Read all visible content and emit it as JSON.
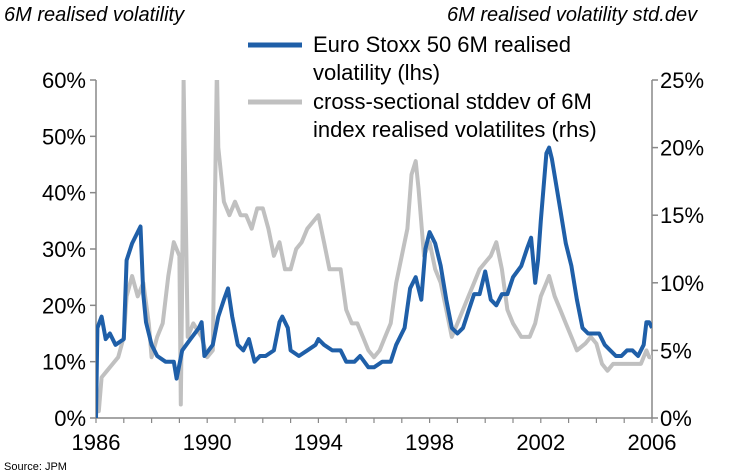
{
  "chart_data": {
    "type": "line",
    "left_axis_title": "6M realised volatility",
    "right_axis_title": "6M realised volatility std.dev",
    "x_ticks": [
      "1986",
      "1990",
      "1994",
      "1998",
      "2002",
      "2006"
    ],
    "y_left_ticks": [
      "0%",
      "10%",
      "20%",
      "30%",
      "40%",
      "50%",
      "60%"
    ],
    "y_right_ticks": [
      "0%",
      "5%",
      "10%",
      "15%",
      "20%",
      "25%"
    ],
    "xlim": [
      1986,
      2006
    ],
    "ylim_left": [
      0,
      60
    ],
    "ylim_right": [
      0,
      25
    ],
    "legend_placement": "top-right",
    "grid": false,
    "series": [
      {
        "name": "Euro Stoxx 50 6M realised volatility (lhs)",
        "axis": "left",
        "color": "#1f5fa8",
        "points": [
          [
            1986.0,
            0
          ],
          [
            1986.05,
            16
          ],
          [
            1986.2,
            18
          ],
          [
            1986.35,
            14
          ],
          [
            1986.5,
            15
          ],
          [
            1986.7,
            13
          ],
          [
            1987.0,
            14
          ],
          [
            1987.1,
            28
          ],
          [
            1987.3,
            31
          ],
          [
            1987.5,
            33
          ],
          [
            1987.6,
            34
          ],
          [
            1987.7,
            22
          ],
          [
            1987.8,
            17
          ],
          [
            1988.0,
            13
          ],
          [
            1988.2,
            11
          ],
          [
            1988.5,
            10
          ],
          [
            1988.8,
            10
          ],
          [
            1988.9,
            7
          ],
          [
            1989.1,
            12
          ],
          [
            1989.4,
            14
          ],
          [
            1989.7,
            16
          ],
          [
            1989.8,
            17
          ],
          [
            1989.9,
            11
          ],
          [
            1990.2,
            13
          ],
          [
            1990.4,
            18
          ],
          [
            1990.6,
            21
          ],
          [
            1990.75,
            23
          ],
          [
            1990.9,
            18
          ],
          [
            1991.1,
            13
          ],
          [
            1991.3,
            12
          ],
          [
            1991.5,
            14
          ],
          [
            1991.7,
            10
          ],
          [
            1991.9,
            11
          ],
          [
            1992.1,
            11
          ],
          [
            1992.4,
            12
          ],
          [
            1992.6,
            17
          ],
          [
            1992.7,
            18
          ],
          [
            1992.9,
            16
          ],
          [
            1993.0,
            12
          ],
          [
            1993.3,
            11
          ],
          [
            1993.6,
            12
          ],
          [
            1993.9,
            13
          ],
          [
            1994.0,
            14
          ],
          [
            1994.2,
            13
          ],
          [
            1994.5,
            12
          ],
          [
            1994.8,
            12
          ],
          [
            1995.0,
            10
          ],
          [
            1995.3,
            10
          ],
          [
            1995.5,
            11
          ],
          [
            1995.8,
            9
          ],
          [
            1996.0,
            9
          ],
          [
            1996.3,
            10
          ],
          [
            1996.6,
            10
          ],
          [
            1996.8,
            13
          ],
          [
            1997.0,
            15
          ],
          [
            1997.1,
            16
          ],
          [
            1997.3,
            23
          ],
          [
            1997.5,
            25
          ],
          [
            1997.7,
            21
          ],
          [
            1997.85,
            30
          ],
          [
            1998.0,
            33
          ],
          [
            1998.2,
            31
          ],
          [
            1998.4,
            27
          ],
          [
            1998.6,
            21
          ],
          [
            1998.8,
            16
          ],
          [
            1999.0,
            15
          ],
          [
            1999.2,
            16
          ],
          [
            1999.4,
            19
          ],
          [
            1999.6,
            22
          ],
          [
            1999.8,
            22
          ],
          [
            2000.0,
            26
          ],
          [
            2000.2,
            21
          ],
          [
            2000.4,
            20
          ],
          [
            2000.6,
            22
          ],
          [
            2000.8,
            22
          ],
          [
            2001.0,
            25
          ],
          [
            2001.3,
            27
          ],
          [
            2001.5,
            30
          ],
          [
            2001.65,
            32
          ],
          [
            2001.8,
            24
          ],
          [
            2001.9,
            28
          ],
          [
            2002.0,
            35
          ],
          [
            2002.1,
            41
          ],
          [
            2002.2,
            47
          ],
          [
            2002.3,
            48
          ],
          [
            2002.4,
            46
          ],
          [
            2002.5,
            43
          ],
          [
            2002.7,
            37
          ],
          [
            2002.9,
            31
          ],
          [
            2003.1,
            27
          ],
          [
            2003.3,
            21
          ],
          [
            2003.5,
            16
          ],
          [
            2003.7,
            15
          ],
          [
            2003.9,
            15
          ],
          [
            2004.1,
            15
          ],
          [
            2004.3,
            13
          ],
          [
            2004.5,
            12
          ],
          [
            2004.7,
            11
          ],
          [
            2004.9,
            11
          ],
          [
            2005.1,
            12
          ],
          [
            2005.3,
            12
          ],
          [
            2005.5,
            11
          ],
          [
            2005.7,
            13
          ],
          [
            2005.8,
            17
          ],
          [
            2005.9,
            17
          ],
          [
            2006.0,
            16
          ]
        ]
      },
      {
        "name": "cross-sectional stddev of 6M index realised volatilites (rhs)",
        "axis": "right",
        "color": "#c0c0c0",
        "points": [
          [
            1986.0,
            1
          ],
          [
            1986.1,
            0.5
          ],
          [
            1986.2,
            3
          ],
          [
            1986.4,
            3.5
          ],
          [
            1986.6,
            4
          ],
          [
            1986.8,
            4.5
          ],
          [
            1987.0,
            6
          ],
          [
            1987.1,
            9
          ],
          [
            1987.3,
            10.5
          ],
          [
            1987.5,
            9
          ],
          [
            1987.7,
            10
          ],
          [
            1987.9,
            7
          ],
          [
            1988.0,
            4.5
          ],
          [
            1988.2,
            6
          ],
          [
            1988.4,
            7
          ],
          [
            1988.6,
            10.5
          ],
          [
            1988.8,
            13
          ],
          [
            1989.0,
            12
          ],
          [
            1989.05,
            1
          ],
          [
            1989.1,
            10
          ],
          [
            1989.15,
            25
          ],
          [
            1989.3,
            6
          ],
          [
            1989.5,
            7
          ],
          [
            1989.8,
            6
          ],
          [
            1990.0,
            4.5
          ],
          [
            1990.2,
            5
          ],
          [
            1990.35,
            26
          ],
          [
            1990.4,
            20
          ],
          [
            1990.6,
            16
          ],
          [
            1990.8,
            15
          ],
          [
            1991.0,
            16
          ],
          [
            1991.2,
            15
          ],
          [
            1991.4,
            15
          ],
          [
            1991.6,
            14
          ],
          [
            1991.8,
            15.5
          ],
          [
            1992.0,
            15.5
          ],
          [
            1992.2,
            14
          ],
          [
            1992.4,
            12
          ],
          [
            1992.6,
            13
          ],
          [
            1992.8,
            11
          ],
          [
            1993.0,
            11
          ],
          [
            1993.2,
            12.5
          ],
          [
            1993.4,
            13
          ],
          [
            1993.6,
            14
          ],
          [
            1993.8,
            14.5
          ],
          [
            1994.0,
            15
          ],
          [
            1994.2,
            13
          ],
          [
            1994.4,
            11
          ],
          [
            1994.6,
            11
          ],
          [
            1994.8,
            11
          ],
          [
            1995.0,
            8
          ],
          [
            1995.2,
            7
          ],
          [
            1995.4,
            7
          ],
          [
            1995.6,
            6
          ],
          [
            1995.8,
            5
          ],
          [
            1996.0,
            4.5
          ],
          [
            1996.2,
            5
          ],
          [
            1996.4,
            6
          ],
          [
            1996.6,
            7
          ],
          [
            1996.8,
            10
          ],
          [
            1997.0,
            12
          ],
          [
            1997.2,
            14
          ],
          [
            1997.35,
            18
          ],
          [
            1997.5,
            19
          ],
          [
            1997.6,
            17
          ],
          [
            1997.8,
            12
          ],
          [
            1998.0,
            13
          ],
          [
            1998.2,
            11
          ],
          [
            1998.4,
            10
          ],
          [
            1998.6,
            8
          ],
          [
            1998.8,
            6
          ],
          [
            1999.0,
            7
          ],
          [
            1999.2,
            8
          ],
          [
            1999.4,
            9
          ],
          [
            1999.6,
            10
          ],
          [
            1999.8,
            11
          ],
          [
            2000.0,
            11.5
          ],
          [
            2000.2,
            12
          ],
          [
            2000.4,
            13
          ],
          [
            2000.6,
            11
          ],
          [
            2000.8,
            8
          ],
          [
            2001.0,
            7
          ],
          [
            2001.3,
            6
          ],
          [
            2001.6,
            6
          ],
          [
            2001.8,
            7
          ],
          [
            2002.0,
            9
          ],
          [
            2002.2,
            10
          ],
          [
            2002.3,
            10.5
          ],
          [
            2002.5,
            9
          ],
          [
            2002.7,
            8
          ],
          [
            2002.9,
            7
          ],
          [
            2003.1,
            6
          ],
          [
            2003.3,
            5
          ],
          [
            2003.6,
            5.5
          ],
          [
            2003.8,
            6
          ],
          [
            2004.0,
            5.5
          ],
          [
            2004.2,
            4
          ],
          [
            2004.4,
            3.5
          ],
          [
            2004.6,
            4
          ],
          [
            2004.8,
            4
          ],
          [
            2005.0,
            4
          ],
          [
            2005.2,
            4
          ],
          [
            2005.4,
            4
          ],
          [
            2005.6,
            4
          ],
          [
            2005.8,
            5
          ],
          [
            2005.9,
            4.5
          ],
          [
            2006.0,
            4.5
          ]
        ]
      }
    ]
  }
}
